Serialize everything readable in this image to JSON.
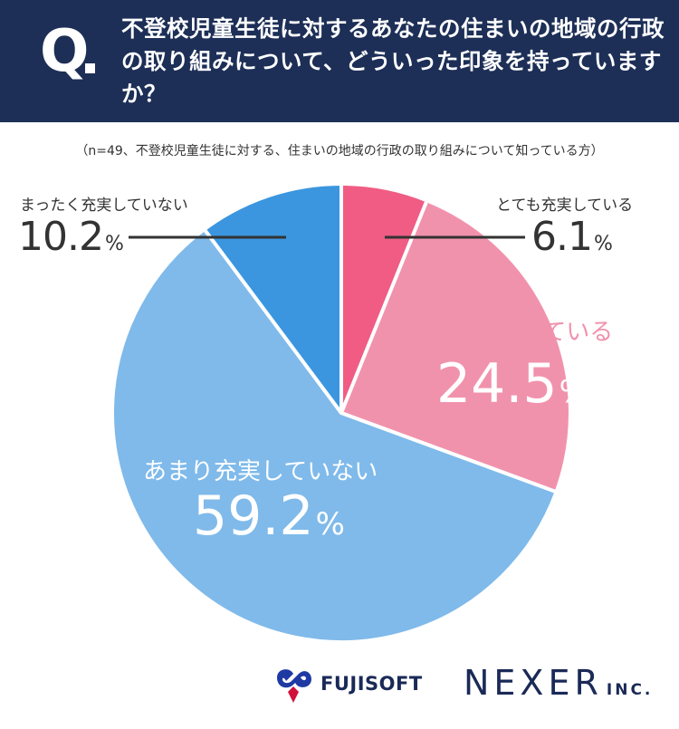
{
  "header": {
    "q_label": "Q",
    "question": "不登校児童生徒に対するあなたの住まいの地域の行政の取り組みについて、どういった印象を持っていますか？"
  },
  "note": "（n=49、不登校児童生徒に対する、住まいの地域の行政の取り組みについて知っている方）",
  "chart_data": {
    "type": "pie",
    "title": "",
    "n": 49,
    "unit": "%",
    "slices": [
      {
        "label": "とても充実している",
        "value": 6.1,
        "value_text": "6.1",
        "color": "#f05c84",
        "label_style": "external"
      },
      {
        "label": "ある程度充実している",
        "value": 24.5,
        "value_text": "24.5",
        "color": "#f192ad",
        "label_style": "internal"
      },
      {
        "label": "あまり充実していない",
        "value": 59.2,
        "value_text": "59.2",
        "color": "#7fbaea",
        "label_style": "internal"
      },
      {
        "label": "まったく充実していない",
        "value": 10.2,
        "value_text": "10.2",
        "color": "#3b96df",
        "label_style": "external"
      }
    ]
  },
  "logos": {
    "fujisoft": "FUJISOFT",
    "nexer": "NEXER",
    "nexer_suffix": "INC."
  },
  "colors": {
    "header_bg": "#1d2f57",
    "text": "#333333",
    "logo": "#1a2a57"
  }
}
